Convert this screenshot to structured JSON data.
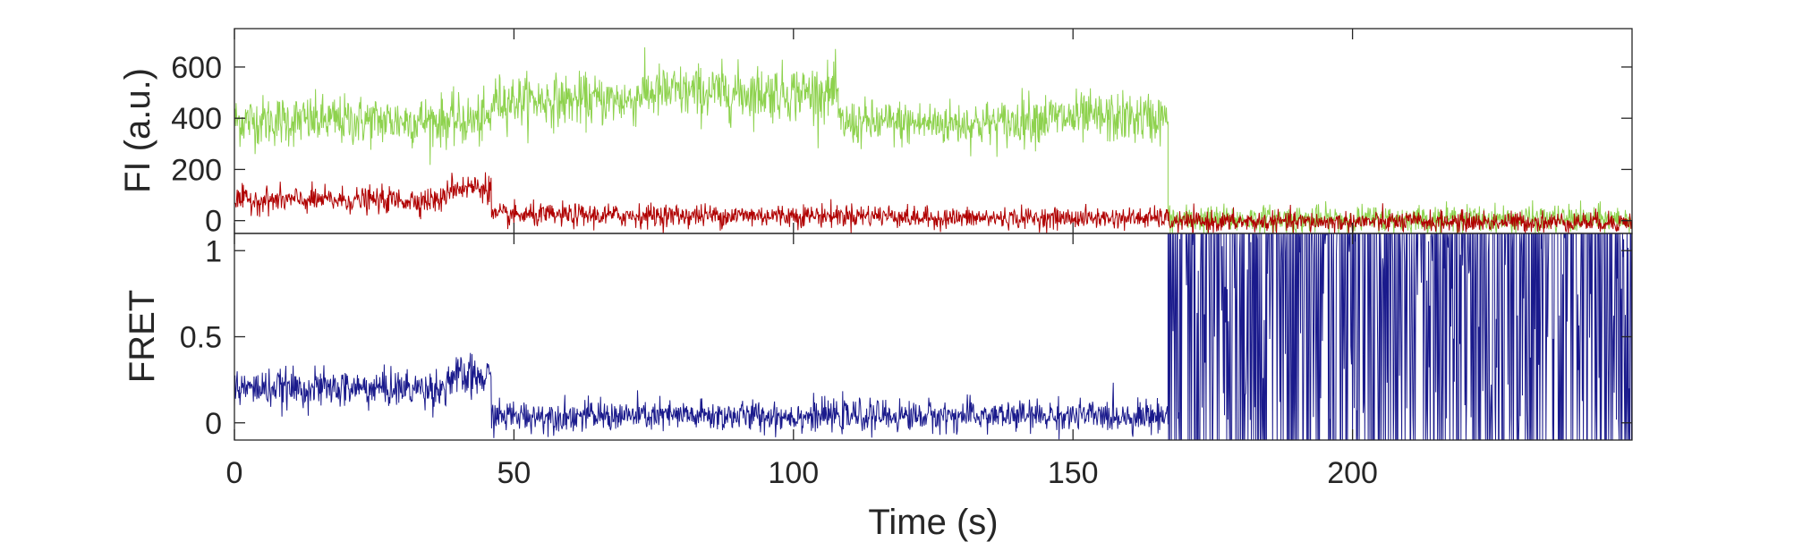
{
  "chart_data": [
    {
      "type": "line",
      "panel": "top",
      "xlabel": "",
      "ylabel": "FI (a.u.)",
      "xlim": [
        0,
        250
      ],
      "ylim": [
        -50,
        750
      ],
      "x_ticks": [
        0,
        50,
        100,
        150,
        200
      ],
      "y_ticks": [
        0,
        200,
        400,
        600
      ],
      "y_tick_labels": [
        "0",
        "200",
        "400",
        "600"
      ],
      "grid": false,
      "series": [
        {
          "color": "#8ed24e",
          "segments": [
            {
              "x0": 0,
              "x1": 46,
              "mean": 390,
              "noise": 110
            },
            {
              "x0": 46,
              "x1": 72,
              "mean": 470,
              "noise": 110
            },
            {
              "x0": 72,
              "x1": 108,
              "mean": 500,
              "noise": 120
            },
            {
              "x0": 108,
              "x1": 140,
              "mean": 380,
              "noise": 100
            },
            {
              "x0": 140,
              "x1": 167,
              "mean": 400,
              "noise": 110
            },
            {
              "x0": 167,
              "x1": 250,
              "mean": 5,
              "noise": 60
            }
          ]
        },
        {
          "color": "#b00000",
          "segments": [
            {
              "x0": 0,
              "x1": 38,
              "mean": 80,
              "noise": 55
            },
            {
              "x0": 38,
              "x1": 46,
              "mean": 130,
              "noise": 60
            },
            {
              "x0": 46,
              "x1": 120,
              "mean": 20,
              "noise": 50
            },
            {
              "x0": 120,
              "x1": 167,
              "mean": 10,
              "noise": 45
            },
            {
              "x0": 167,
              "x1": 250,
              "mean": -5,
              "noise": 45
            }
          ]
        }
      ]
    },
    {
      "type": "line",
      "panel": "bottom",
      "xlabel": "Time (s)",
      "ylabel": "FRET",
      "xlim": [
        0,
        250
      ],
      "ylim": [
        -0.1,
        1.1
      ],
      "x_ticks": [
        0,
        50,
        100,
        150,
        200
      ],
      "x_tick_labels": [
        "0",
        "50",
        "100",
        "150",
        "200"
      ],
      "y_ticks": [
        0,
        0.5,
        1
      ],
      "y_tick_labels": [
        "0",
        "0.5",
        "1"
      ],
      "grid": false,
      "series": [
        {
          "color": "#1a1a8c",
          "segments": [
            {
              "x0": 0,
              "x1": 38,
              "mean": 0.2,
              "noise": 0.12
            },
            {
              "x0": 38,
              "x1": 46,
              "mean": 0.26,
              "noise": 0.14
            },
            {
              "x0": 46,
              "x1": 167,
              "mean": 0.04,
              "noise": 0.1
            },
            {
              "x0": 167,
              "x1": 250,
              "mean": 0.5,
              "noise": 0.7
            }
          ]
        }
      ]
    }
  ]
}
